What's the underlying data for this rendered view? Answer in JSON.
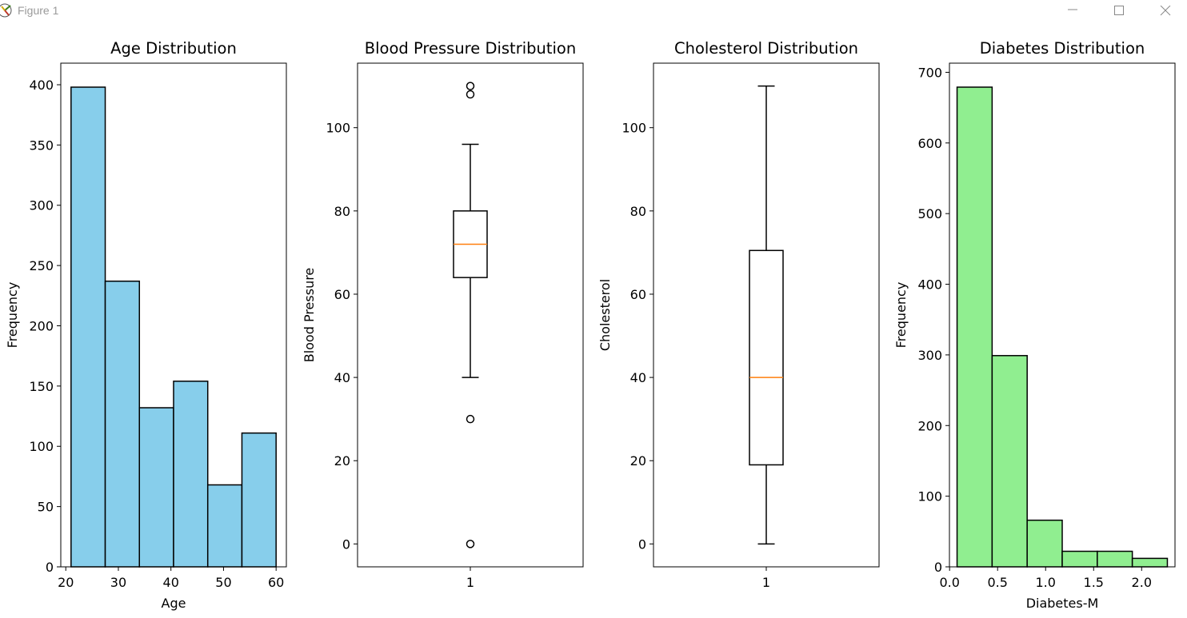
{
  "window": {
    "title": "Figure 1",
    "minimize_icon": "minimize-icon",
    "maximize_icon": "maximize-icon",
    "close_icon": "close-icon"
  },
  "colors": {
    "age_bars": "#87ceeb",
    "diabetes_bars": "#90ee90",
    "median": "#ff7f0e",
    "edge": "#000000"
  },
  "chart_data": [
    {
      "type": "bar",
      "title": "Age Distribution",
      "xlabel": "Age",
      "ylabel": "Frequency",
      "bin_edges": [
        21,
        27.5,
        34,
        40.5,
        47,
        53.5,
        60
      ],
      "values": [
        398,
        237,
        132,
        154,
        68,
        111
      ],
      "xlim": [
        19.05,
        61.95
      ],
      "ylim": [
        0,
        417.9
      ],
      "xticks": [
        20,
        30,
        40,
        50,
        60
      ],
      "yticks": [
        0,
        50,
        100,
        150,
        200,
        250,
        300,
        350,
        400
      ],
      "grid": false
    },
    {
      "type": "box",
      "title": "Blood Pressure Distribution",
      "xlabel": "",
      "ylabel": "Blood Pressure",
      "categories": [
        "1"
      ],
      "q1": 64,
      "median": 72,
      "q3": 80,
      "whisker_low": 40,
      "whisker_high": 96,
      "outliers": [
        0,
        30,
        108,
        110
      ],
      "ylim": [
        -5.5,
        115.5
      ],
      "yticks": [
        0,
        20,
        40,
        60,
        80,
        100
      ],
      "grid": false
    },
    {
      "type": "box",
      "title": "Cholesterol Distribution",
      "xlabel": "",
      "ylabel": "Cholesterol",
      "categories": [
        "1"
      ],
      "q1": 19,
      "median": 40,
      "q3": 70.5,
      "whisker_low": 0,
      "whisker_high": 110,
      "outliers": [],
      "ylim": [
        -5.5,
        115.5
      ],
      "yticks": [
        0,
        20,
        40,
        60,
        80,
        100
      ],
      "grid": false
    },
    {
      "type": "bar",
      "title": "Diabetes Distribution",
      "xlabel": "Diabetes-M",
      "ylabel": "Frequency",
      "bin_edges": [
        0.078,
        0.443,
        0.808,
        1.173,
        1.538,
        1.903,
        2.268
      ],
      "values": [
        679,
        299,
        66,
        22,
        22,
        12
      ],
      "xlim": [
        -0.0015,
        2.3475
      ],
      "ylim": [
        0,
        712.95
      ],
      "xticks": [
        0.0,
        0.5,
        1.0,
        1.5,
        2.0
      ],
      "xtick_labels": [
        "0.0",
        "0.5",
        "1.0",
        "1.5",
        "2.0"
      ],
      "yticks": [
        0,
        100,
        200,
        300,
        400,
        500,
        600,
        700
      ],
      "grid": false
    }
  ]
}
